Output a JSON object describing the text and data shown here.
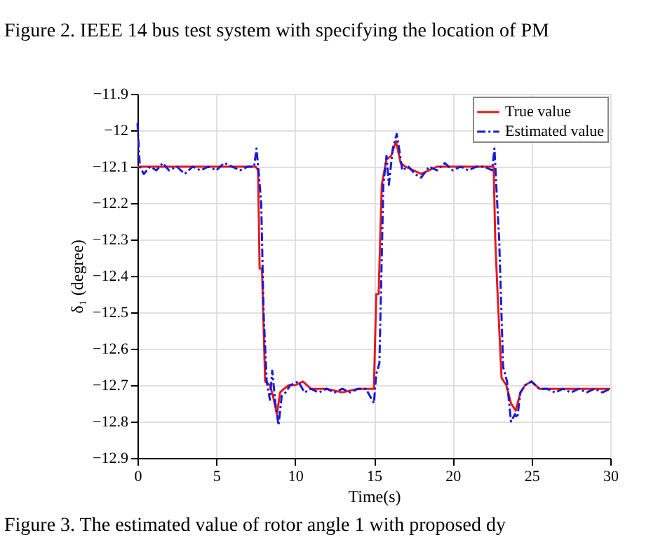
{
  "chart_data": {
    "type": "line",
    "xlabel": "Time(s)",
    "ylabel": "δ₁ (degree)",
    "annotations": [
      "Figure 2.   IEEE 14 bus test system with specifying the location of PM",
      "Figure 3.   The estimated value of rotor angle 1 with proposed dy"
    ],
    "xlim": [
      0,
      30
    ],
    "xticks": [
      0,
      5,
      10,
      15,
      20,
      25,
      30
    ],
    "ylim": [
      -12.9,
      -11.9
    ],
    "yticks": [
      -12.9,
      -12.8,
      -12.7,
      -12.6,
      -12.5,
      -12.4,
      -12.3,
      -12.2,
      -12.1,
      -12,
      -11.9
    ],
    "grid": true,
    "legend": "top right",
    "series": [
      {
        "name": "True value",
        "color": "#e41a1c",
        "line_style": "solid",
        "x": [
          0,
          7.5,
          7.65,
          7.75,
          7.9,
          8.1,
          8.4,
          8.6,
          8.85,
          9.05,
          9.3,
          9.6,
          10,
          10.5,
          11,
          12,
          13,
          14,
          15,
          15.15,
          15.3,
          15.5,
          15.8,
          16.1,
          16.4,
          16.7,
          17,
          17.5,
          18,
          18.5,
          19,
          20,
          21,
          22,
          22.6,
          22.7,
          22.85,
          23.1,
          23.4,
          23.7,
          24,
          24.3,
          24.6,
          25,
          25.5,
          26,
          27,
          28,
          29,
          30
        ],
        "values": [
          -12.1,
          -12.1,
          -12.11,
          -12.38,
          -12.38,
          -12.69,
          -12.7,
          -12.73,
          -12.78,
          -12.72,
          -12.71,
          -12.7,
          -12.7,
          -12.69,
          -12.71,
          -12.71,
          -12.72,
          -12.71,
          -12.71,
          -12.45,
          -12.45,
          -12.15,
          -12.08,
          -12.07,
          -12.03,
          -12.09,
          -12.1,
          -12.11,
          -12.12,
          -12.11,
          -12.1,
          -12.1,
          -12.1,
          -12.1,
          -12.1,
          -12.3,
          -12.45,
          -12.68,
          -12.7,
          -12.75,
          -12.77,
          -12.72,
          -12.7,
          -12.69,
          -12.71,
          -12.71,
          -12.71,
          -12.71,
          -12.71,
          -12.71
        ]
      },
      {
        "name": "Estimated value",
        "color": "#1a1adb",
        "line_style": "dashdot",
        "x": [
          0,
          0.15,
          0.4,
          0.8,
          1.2,
          1.6,
          2,
          2.5,
          3,
          3.5,
          4,
          4.5,
          5,
          5.5,
          6,
          6.5,
          7,
          7.4,
          7.55,
          7.7,
          7.85,
          8,
          8.2,
          8.4,
          8.55,
          8.75,
          8.95,
          9.15,
          9.4,
          9.7,
          10.2,
          10.6,
          11,
          11.5,
          12,
          12.5,
          13,
          13.5,
          14,
          14.5,
          15,
          15.15,
          15.35,
          15.6,
          15.8,
          15.95,
          16.2,
          16.45,
          16.6,
          16.8,
          17.2,
          17.6,
          18,
          18.5,
          19,
          19.5,
          20,
          20.5,
          21,
          21.5,
          22,
          22.5,
          22.65,
          22.8,
          22.95,
          23.2,
          23.45,
          23.7,
          23.95,
          24.1,
          24.3,
          24.6,
          25,
          25.5,
          26,
          26.5,
          27,
          27.5,
          28,
          28.5,
          29,
          29.5,
          30
        ],
        "values": [
          -11.98,
          -12.1,
          -12.12,
          -12.1,
          -12.11,
          -12.09,
          -12.11,
          -12.1,
          -12.12,
          -12.1,
          -12.11,
          -12.1,
          -12.11,
          -12.09,
          -12.1,
          -12.11,
          -12.1,
          -12.1,
          -12.05,
          -12.12,
          -12.2,
          -12.5,
          -12.69,
          -12.74,
          -12.66,
          -12.75,
          -12.81,
          -12.73,
          -12.72,
          -12.7,
          -12.69,
          -12.72,
          -12.71,
          -12.72,
          -12.71,
          -12.72,
          -12.71,
          -12.72,
          -12.71,
          -12.71,
          -12.75,
          -12.67,
          -12.64,
          -12.15,
          -12.07,
          -12.15,
          -12.05,
          -12.01,
          -12.05,
          -12.11,
          -12.1,
          -12.12,
          -12.13,
          -12.1,
          -12.11,
          -12.09,
          -12.11,
          -12.1,
          -12.11,
          -12.1,
          -12.1,
          -12.11,
          -12.05,
          -12.18,
          -12.3,
          -12.65,
          -12.69,
          -12.8,
          -12.78,
          -12.79,
          -12.72,
          -12.7,
          -12.69,
          -12.71,
          -12.71,
          -12.72,
          -12.71,
          -12.72,
          -12.71,
          -12.72,
          -12.71,
          -12.72,
          -12.71
        ]
      }
    ]
  }
}
